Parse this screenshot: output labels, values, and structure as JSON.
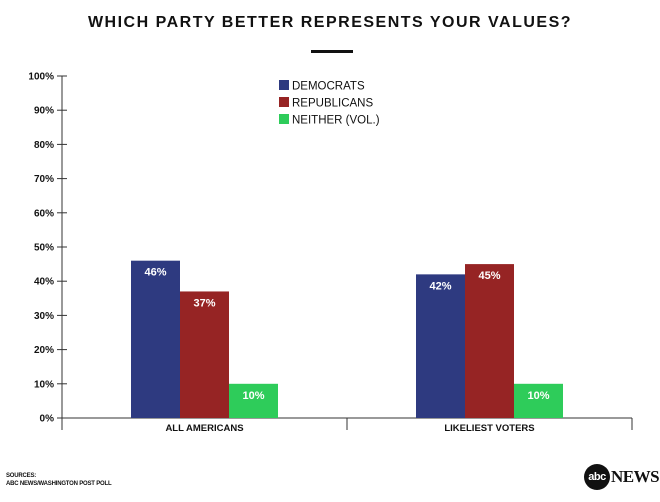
{
  "title": "WHICH PARTY BETTER REPRESENTS YOUR VALUES?",
  "sources": {
    "label": "SOURCES:",
    "text": "ABC NEWS/WASHINGTON POST POLL"
  },
  "logo": {
    "mark": "abc",
    "word": "NEWS"
  },
  "colors": {
    "democrats": "#2e3a80",
    "republicans": "#962424",
    "neither": "#2ecc5a",
    "axis": "#333333"
  },
  "chart_data": {
    "type": "bar",
    "title": "WHICH PARTY BETTER REPRESENTS YOUR VALUES?",
    "categories": [
      "ALL AMERICANS",
      "LIKELIEST VOTERS"
    ],
    "series": [
      {
        "name": "DEMOCRATS",
        "values": [
          46,
          42
        ],
        "labels": [
          "46%",
          "42%"
        ]
      },
      {
        "name": "REPUBLICANS",
        "values": [
          37,
          45
        ],
        "labels": [
          "37%",
          "45%"
        ]
      },
      {
        "name": "NEITHER (VOL.)",
        "values": [
          10,
          10
        ],
        "labels": [
          "10%",
          "10%"
        ]
      }
    ],
    "ylim": [
      0,
      100
    ],
    "yticks": [
      "0%",
      "10%",
      "20%",
      "30%",
      "40%",
      "50%",
      "60%",
      "70%",
      "80%",
      "90%",
      "100%"
    ],
    "xlabel": "",
    "ylabel": "",
    "grid": false,
    "legend": "top-center"
  }
}
